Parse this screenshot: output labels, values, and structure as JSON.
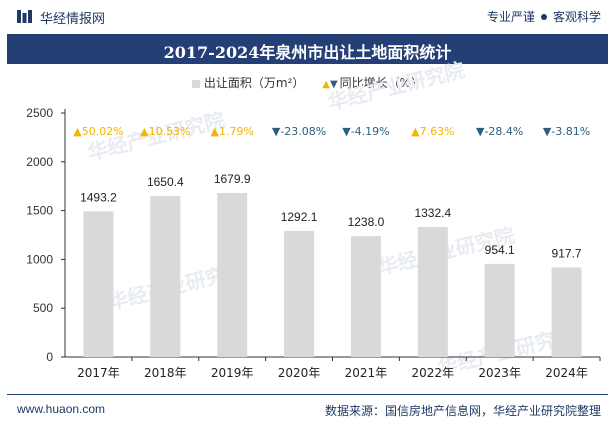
{
  "header": {
    "brand": "华经情报网",
    "tagline_left": "专业严谨",
    "tagline_right": "客观科学"
  },
  "footer": {
    "url": "www.huaon.com",
    "source": "数据来源：国信房地产信息网，华经产业研究院整理"
  },
  "watermark": "华经产业研究院",
  "colors": {
    "bar": "#d9d9d9",
    "title_bg": "#233f76",
    "up": "#f4b400",
    "down": "#2e5e7e"
  },
  "chart_data": {
    "type": "bar",
    "title": "2017-2024年泉州市出让土地面积统计",
    "categories": [
      "2017年",
      "2018年",
      "2019年",
      "2020年",
      "2021年",
      "2022年",
      "2023年",
      "2024年"
    ],
    "series": [
      {
        "name": "出让面积（万m²）",
        "values": [
          1493.2,
          1650.4,
          1679.9,
          1292.1,
          1238.0,
          1332.4,
          954.1,
          917.7
        ]
      },
      {
        "name": "同比增长（%）",
        "values": [
          50.02,
          10.53,
          1.79,
          -23.08,
          -4.19,
          7.63,
          -28.4,
          -3.81
        ]
      }
    ],
    "value_labels": [
      "1493.2",
      "1650.4",
      "1679.9",
      "1292.1",
      "1238.0",
      "1332.4",
      "954.1",
      "917.7"
    ],
    "growth_labels": [
      "50.02%",
      "10.53%",
      "1.79%",
      "-23.08%",
      "-4.19%",
      "7.63%",
      "-28.4%",
      "-3.81%"
    ],
    "ylim": [
      0,
      2500
    ],
    "yticks": [
      0,
      500,
      1000,
      1500,
      2000,
      2500
    ],
    "legend_position": "top-center",
    "grid": false
  }
}
